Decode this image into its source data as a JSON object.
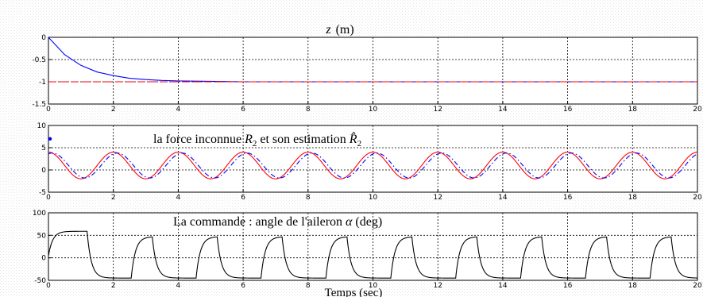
{
  "chart_data": [
    {
      "type": "line",
      "title": "z (m)",
      "title_parts": {
        "var": "z",
        "unit": "(m)"
      },
      "xlim": [
        0,
        20
      ],
      "ylim": [
        -1.5,
        0
      ],
      "xticks": [
        0,
        2,
        4,
        6,
        8,
        10,
        12,
        14,
        16,
        18,
        20
      ],
      "xtick_labels": [
        "0",
        "2",
        "4",
        "6",
        "8",
        "10",
        "12",
        "14",
        "16",
        "18",
        "20"
      ],
      "yticks": [
        -1.5,
        -1,
        -0.5,
        0
      ],
      "ytick_labels": [
        "-1.5",
        "-1",
        "-0.5",
        "0"
      ],
      "grid": true,
      "series": [
        {
          "color": "#0000ff",
          "style": "solid",
          "x": [
            0,
            0.5,
            1,
            1.5,
            2,
            2.5,
            3,
            3.5,
            4,
            5,
            6,
            8,
            10,
            12,
            14,
            16,
            18,
            20
          ],
          "y": [
            0,
            -0.39,
            -0.63,
            -0.78,
            -0.86,
            -0.92,
            -0.95,
            -0.97,
            -0.98,
            -0.99,
            -1.0,
            -1.0,
            -1.0,
            -1.0,
            -1.0,
            -1.0,
            -1.0,
            -1.0
          ]
        },
        {
          "color": "#ff0000",
          "style": "dashed",
          "x": [
            0,
            20
          ],
          "y": [
            -1,
            -1
          ]
        }
      ]
    },
    {
      "type": "line",
      "title": "la force inconnue R2 et son estimation R̂2",
      "title_parts": {
        "prefix": "la force inconnue ",
        "r": "R",
        "sub": "2",
        "mid": " et son estimation ",
        "rhat": "R̂",
        "sub2": "2"
      },
      "xlim": [
        0,
        20
      ],
      "ylim": [
        -5,
        10
      ],
      "xticks": [
        0,
        2,
        4,
        6,
        8,
        10,
        12,
        14,
        16,
        18,
        20
      ],
      "xtick_labels": [
        "0",
        "2",
        "4",
        "6",
        "8",
        "10",
        "12",
        "14",
        "16",
        "18",
        "20"
      ],
      "yticks": [
        -5,
        0,
        5,
        10
      ],
      "ytick_labels": [
        "-5",
        "0",
        "5",
        "10"
      ],
      "grid": true,
      "series": [
        {
          "color": "#ff0000",
          "style": "solid",
          "model": "sine",
          "offset": 1.0,
          "amplitude": 3.0,
          "period": 2.0,
          "phase_shift": -0.5
        },
        {
          "color": "#0000ff",
          "style": "dashdot",
          "model": "sine",
          "offset": 1.0,
          "amplitude": 2.8,
          "period": 2.0,
          "phase_shift": -0.38
        },
        {
          "color": "#0000ff",
          "style": "marker",
          "x": [
            0.05
          ],
          "y": [
            7.0
          ]
        }
      ]
    },
    {
      "type": "line",
      "title": "La commande : angle de l'aileron α (deg)",
      "title_parts": {
        "text": "La commande : angle de l'aileron ",
        "alpha": "α",
        "unit": " (deg)"
      },
      "xlabel": "Temps (sec)",
      "xlim": [
        0,
        20
      ],
      "ylim": [
        -50,
        100
      ],
      "xticks": [
        0,
        2,
        4,
        6,
        8,
        10,
        12,
        14,
        16,
        18,
        20
      ],
      "xtick_labels": [
        "0",
        "2",
        "4",
        "6",
        "8",
        "10",
        "12",
        "14",
        "16",
        "18",
        "20"
      ],
      "yticks": [
        -50,
        0,
        50,
        100
      ],
      "ytick_labels": [
        "-50",
        "0",
        "50",
        "100"
      ],
      "grid": true,
      "series": [
        {
          "color": "#000000",
          "style": "solid",
          "model": "square",
          "period": 2.0,
          "high": 47,
          "low": -45,
          "tau": 0.13,
          "first_high": 59,
          "first_high_end": 1.2
        }
      ]
    }
  ]
}
